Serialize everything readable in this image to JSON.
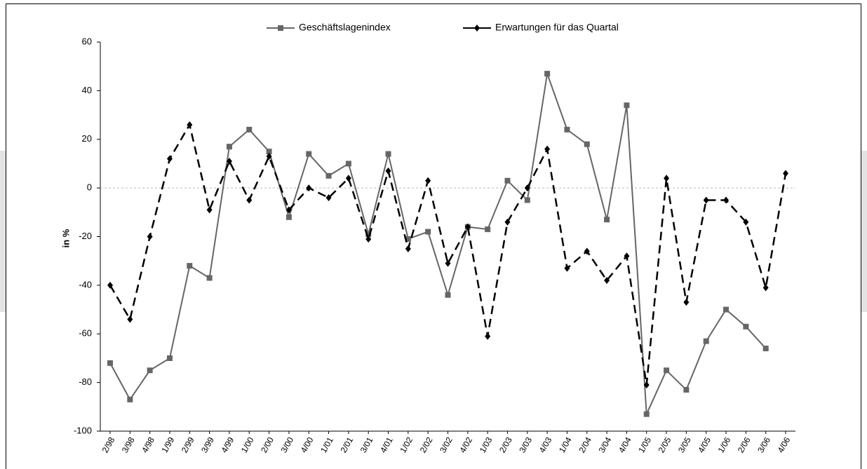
{
  "chart_data": {
    "type": "line",
    "y_label": "in %",
    "categories": [
      "2/98",
      "3/98",
      "4/98",
      "1/99",
      "2/99",
      "3/99",
      "4/99",
      "1/00",
      "2/00",
      "3/00",
      "4/00",
      "1/01",
      "2/01",
      "3/01",
      "4/01",
      "1/02",
      "2/02",
      "3/02",
      "4/02",
      "1/03",
      "2/03",
      "3/03",
      "4/03",
      "1/04",
      "2/04",
      "3/04",
      "4/04",
      "1/05",
      "2/05",
      "3/05",
      "4/05",
      "1/06",
      "2/06",
      "3/06",
      "4/06"
    ],
    "series": [
      {
        "name": "Geschäftslagenindex",
        "color": "#666666",
        "dash": false,
        "marker": "square",
        "values": [
          -72,
          -87,
          -75,
          -70,
          -32,
          -37,
          17,
          24,
          15,
          -12,
          14,
          5,
          10,
          -19,
          14,
          -21,
          -18,
          -44,
          -16,
          -17,
          3,
          -5,
          47,
          24,
          18,
          -13,
          34,
          -93,
          -75,
          -83,
          -63,
          -50,
          -57,
          -66,
          null
        ]
      },
      {
        "name": "Erwartungen für das Quartal",
        "color": "#000000",
        "dash": true,
        "marker": "diamond",
        "values": [
          -40,
          -54,
          -20,
          12,
          26,
          -9,
          11,
          -5,
          13,
          -9,
          0,
          -4,
          4,
          -21,
          7,
          -25,
          3,
          -31,
          -16,
          -61,
          -14,
          0,
          16,
          -33,
          -26,
          -38,
          -28,
          -81,
          4,
          -47,
          -5,
          -5,
          -14,
          -41,
          6
        ]
      }
    ],
    "ylim": [
      -100,
      60
    ],
    "yticks": [
      -100,
      -80,
      -60,
      -40,
      -20,
      0,
      20,
      40,
      60
    ],
    "grid": false,
    "legend": "top"
  }
}
